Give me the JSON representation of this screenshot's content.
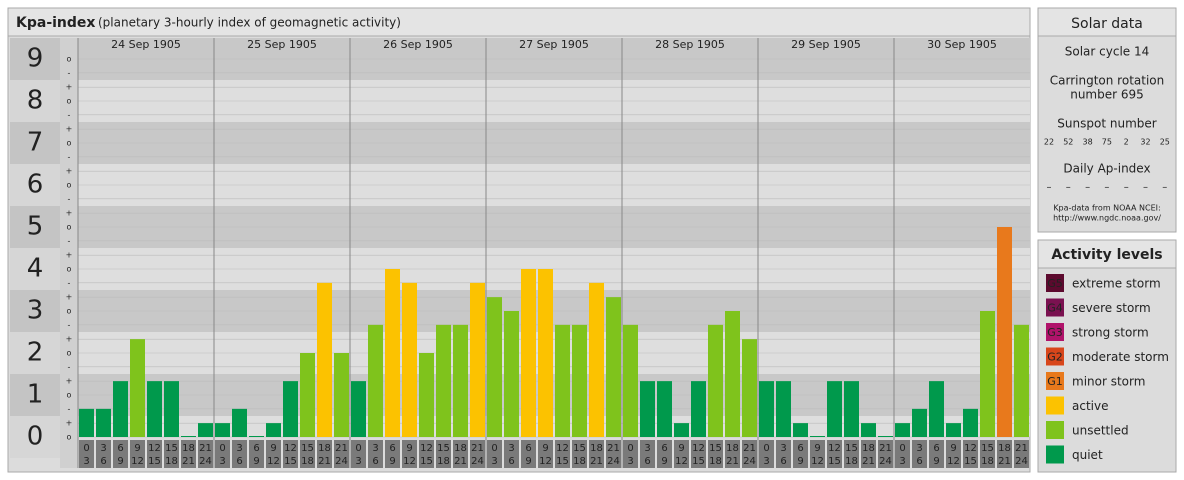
{
  "chart_data": {
    "type": "bar",
    "title": "Kpa-index",
    "subtitle": "(planetary 3-hourly index of geomagnetic activity)",
    "days": [
      "24 Sep 1905",
      "25 Sep 1905",
      "26 Sep 1905",
      "27 Sep 1905",
      "28 Sep 1905",
      "29 Sep 1905",
      "30 Sep 1905"
    ],
    "hour_ranges": [
      [
        "0",
        "3"
      ],
      [
        "3",
        "6"
      ],
      [
        "6",
        "9"
      ],
      [
        "9",
        "12"
      ],
      [
        "12",
        "15"
      ],
      [
        "15",
        "18"
      ],
      [
        "18",
        "21"
      ],
      [
        "21",
        "24"
      ]
    ],
    "values": [
      0.67,
      0.67,
      1.33,
      2.33,
      1.33,
      1.33,
      0,
      0.33,
      0.33,
      0.67,
      0,
      0.33,
      1.33,
      2,
      3.67,
      2,
      1.33,
      2.67,
      4,
      3.67,
      2,
      2.67,
      2.67,
      3.67,
      3.33,
      3,
      4,
      4,
      2.67,
      2.67,
      3.67,
      3.33,
      2.67,
      1.33,
      1.33,
      0.33,
      1.33,
      2.67,
      3,
      2.33,
      1.33,
      1.33,
      0.33,
      0,
      1.33,
      1.33,
      0.33,
      0,
      0.33,
      0.67,
      1.33,
      0.33,
      0.67,
      3,
      5,
      2.67
    ],
    "colors": [
      "#00994c",
      "#00994c",
      "#00994c",
      "#7fc31c",
      "#00994c",
      "#00994c",
      "#00994c",
      "#00994c",
      "#00994c",
      "#00994c",
      "#00994c",
      "#00994c",
      "#00994c",
      "#7fc31c",
      "#fcc200",
      "#7fc31c",
      "#00994c",
      "#7fc31c",
      "#fcc200",
      "#fcc200",
      "#7fc31c",
      "#7fc31c",
      "#7fc31c",
      "#fcc200",
      "#7fc31c",
      "#7fc31c",
      "#fcc200",
      "#fcc200",
      "#7fc31c",
      "#7fc31c",
      "#fcc200",
      "#7fc31c",
      "#7fc31c",
      "#00994c",
      "#00994c",
      "#00994c",
      "#00994c",
      "#7fc31c",
      "#7fc31c",
      "#7fc31c",
      "#00994c",
      "#00994c",
      "#00994c",
      "#00994c",
      "#00994c",
      "#00994c",
      "#00994c",
      "#00994c",
      "#00994c",
      "#00994c",
      "#00994c",
      "#00994c",
      "#00994c",
      "#7fc31c",
      "#e8791c",
      "#7fc31c"
    ],
    "ylim": [
      0,
      9.5
    ],
    "yticks": [
      0,
      1,
      2,
      3,
      4,
      5,
      6,
      7,
      8,
      9
    ],
    "minor_ticks": [
      {
        "value": 0,
        "label": "o"
      },
      {
        "value": 0.33,
        "label": "+"
      },
      {
        "value": 0.67,
        "label": "-"
      },
      {
        "value": 1,
        "label": "o"
      },
      {
        "value": 1.33,
        "label": "+"
      },
      {
        "value": 1.67,
        "label": "-"
      },
      {
        "value": 2,
        "label": "o"
      },
      {
        "value": 2.33,
        "label": "+"
      },
      {
        "value": 2.67,
        "label": "-"
      },
      {
        "value": 3,
        "label": "o"
      },
      {
        "value": 3.33,
        "label": "+"
      },
      {
        "value": 3.67,
        "label": "-"
      },
      {
        "value": 4,
        "label": "o"
      },
      {
        "value": 4.33,
        "label": "+"
      },
      {
        "value": 4.67,
        "label": "-"
      },
      {
        "value": 5,
        "label": "o"
      },
      {
        "value": 5.33,
        "label": "+"
      },
      {
        "value": 5.67,
        "label": "-"
      },
      {
        "value": 6,
        "label": "o"
      },
      {
        "value": 6.33,
        "label": "+"
      },
      {
        "value": 6.67,
        "label": "-"
      },
      {
        "value": 7,
        "label": "o"
      },
      {
        "value": 7.33,
        "label": "+"
      },
      {
        "value": 7.67,
        "label": "-"
      },
      {
        "value": 8,
        "label": "o"
      },
      {
        "value": 8.33,
        "label": "+"
      },
      {
        "value": 8.67,
        "label": "-"
      },
      {
        "value": 9,
        "label": "o"
      }
    ],
    "grid": true
  },
  "solar": {
    "title": "Solar data",
    "cycle": "Solar cycle 14",
    "rotation": [
      "Carrington rotation",
      "number 695"
    ],
    "sunspot_title": "Sunspot number",
    "sunspots": [
      22,
      52,
      38,
      75,
      2,
      32,
      25
    ],
    "ap_title": "Daily Ap-index",
    "ap_index": [
      "–",
      "–",
      "–",
      "–",
      "–",
      "–",
      "–"
    ],
    "source": [
      "Kpa-data from NOAA NCEI:",
      "http://www.ngdc.noaa.gov/"
    ]
  },
  "activity": {
    "title": "Activity levels",
    "levels": [
      {
        "code": "G5",
        "name": "extreme storm",
        "color": "#5c0a2e"
      },
      {
        "code": "G4",
        "name": "severe storm",
        "color": "#7a1150"
      },
      {
        "code": "G3",
        "name": "strong storm",
        "color": "#b0136a"
      },
      {
        "code": "G2",
        "name": "moderate storm",
        "color": "#d8461b"
      },
      {
        "code": "G1",
        "name": "minor storm",
        "color": "#e8791c"
      },
      {
        "name": "active",
        "color": "#fcc200"
      },
      {
        "name": "unsettled",
        "color": "#7fc31c"
      },
      {
        "name": "quiet",
        "color": "#00994c"
      }
    ]
  }
}
